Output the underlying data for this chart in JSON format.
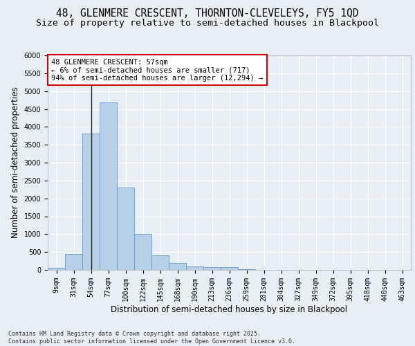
{
  "title1": "48, GLENMERE CRESCENT, THORNTON-CLEVELEYS, FY5 1QD",
  "title2": "Size of property relative to semi-detached houses in Blackpool",
  "xlabel": "Distribution of semi-detached houses by size in Blackpool",
  "ylabel": "Number of semi-detached properties",
  "footnote": "Contains HM Land Registry data © Crown copyright and database right 2025.\nContains public sector information licensed under the Open Government Licence v3.0.",
  "bin_labels": [
    "9sqm",
    "31sqm",
    "54sqm",
    "77sqm",
    "100sqm",
    "122sqm",
    "145sqm",
    "168sqm",
    "190sqm",
    "213sqm",
    "236sqm",
    "259sqm",
    "281sqm",
    "304sqm",
    "327sqm",
    "349sqm",
    "372sqm",
    "395sqm",
    "418sqm",
    "440sqm",
    "463sqm"
  ],
  "bar_values": [
    50,
    440,
    3820,
    4680,
    2300,
    1000,
    410,
    200,
    100,
    70,
    70,
    20,
    0,
    0,
    0,
    0,
    0,
    0,
    0,
    0,
    0
  ],
  "bar_color": "#b8cfe8",
  "bar_edge_color": "#6699cc",
  "property_bin_index": 2,
  "annotation_text": "48 GLENMERE CRESCENT: 57sqm\n← 6% of semi-detached houses are smaller (717)\n94% of semi-detached houses are larger (12,294) →",
  "vline_color": "#222222",
  "annotation_box_facecolor": "#ffffff",
  "annotation_box_edgecolor": "#cc0000",
  "ylim": [
    0,
    6000
  ],
  "yticks": [
    0,
    500,
    1000,
    1500,
    2000,
    2500,
    3000,
    3500,
    4000,
    4500,
    5000,
    5500,
    6000
  ],
  "bg_color": "#e8eef5",
  "plot_bg_color": "#e8eef5",
  "grid_color": "#ffffff",
  "title_fontsize": 10.5,
  "subtitle_fontsize": 9.5,
  "axis_label_fontsize": 8.5,
  "tick_fontsize": 7,
  "annotation_fontsize": 7.5
}
